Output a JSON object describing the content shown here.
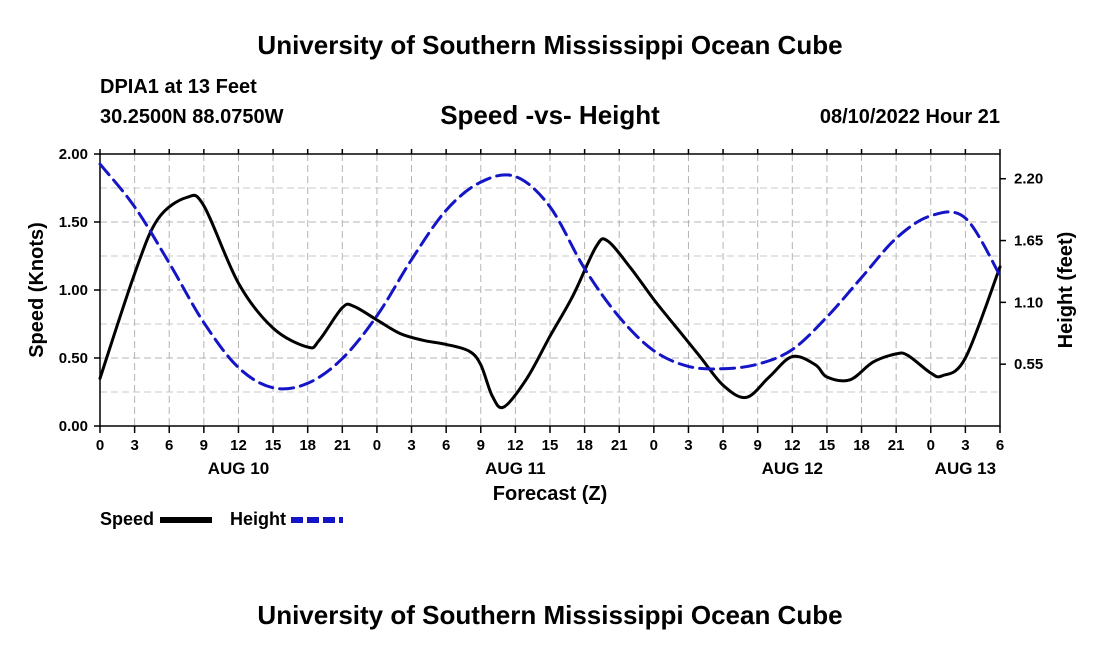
{
  "page": {
    "title": "University of Southern Mississippi Ocean Cube",
    "station": "DPIA1 at 13 Feet",
    "coordinates": "30.2500N  88.0750W",
    "subtitle": "Speed -vs- Height",
    "datetime": "08/10/2022 Hour 21",
    "footer_title": "University of Southern Mississippi Ocean Cube"
  },
  "chart_data": {
    "type": "line",
    "title": "Speed -vs- Height",
    "xlabel": "Forecast (Z)",
    "ylabel": "Speed (Knots)",
    "y2label": "Height (feet)",
    "xlim": [
      0,
      78
    ],
    "ylim": [
      0,
      2.0
    ],
    "y2lim": [
      0.0,
      2.42
    ],
    "grid": true,
    "x_ticks": [
      0,
      3,
      6,
      9,
      12,
      15,
      18,
      21,
      24,
      27,
      30,
      33,
      36,
      39,
      42,
      45,
      48,
      51,
      54,
      57,
      60,
      63,
      66,
      69,
      72,
      75,
      78
    ],
    "x_tick_labels": [
      "0",
      "3",
      "6",
      "9",
      "12",
      "15",
      "18",
      "21",
      "0",
      "3",
      "6",
      "9",
      "12",
      "15",
      "18",
      "21",
      "0",
      "3",
      "6",
      "9",
      "12",
      "15",
      "18",
      "21",
      "0",
      "3",
      "6"
    ],
    "day_labels": [
      {
        "x": 12,
        "label": "AUG 10"
      },
      {
        "x": 36,
        "label": "AUG 11"
      },
      {
        "x": 60,
        "label": "AUG 12"
      },
      {
        "x": 75,
        "label": "AUG 13"
      }
    ],
    "y_ticks": [
      0.0,
      0.5,
      1.0,
      1.5,
      2.0
    ],
    "y_tick_labels": [
      "0.00",
      "0.50",
      "1.00",
      "1.50",
      "2.00"
    ],
    "y2_ticks": [
      0.55,
      1.1,
      1.65,
      2.2
    ],
    "y2_tick_labels": [
      "0.55",
      "1.10",
      "1.65",
      "2.20"
    ],
    "legend": [
      {
        "name": "Speed",
        "color": "#000000",
        "dash": false
      },
      {
        "name": "Height",
        "color": "#1515c8",
        "dash": true
      }
    ],
    "series": [
      {
        "name": "Speed",
        "axis": "left",
        "color": "#000000",
        "x": [
          0,
          3,
          5,
          7.5,
          9,
          12,
          15,
          18,
          19,
          21,
          22,
          24,
          26,
          28,
          30,
          32,
          33,
          34,
          35,
          37,
          39,
          41,
          43,
          44,
          46,
          48,
          50,
          52,
          54,
          56,
          58,
          60,
          62,
          63,
          65,
          67,
          69,
          70,
          72,
          73,
          75,
          78
        ],
        "values": [
          0.35,
          1.12,
          1.52,
          1.68,
          1.62,
          1.05,
          0.72,
          0.58,
          0.63,
          0.87,
          0.88,
          0.78,
          0.68,
          0.63,
          0.6,
          0.55,
          0.45,
          0.22,
          0.14,
          0.35,
          0.66,
          0.96,
          1.32,
          1.36,
          1.16,
          0.93,
          0.72,
          0.51,
          0.3,
          0.21,
          0.36,
          0.51,
          0.45,
          0.36,
          0.34,
          0.47,
          0.53,
          0.52,
          0.39,
          0.37,
          0.5,
          1.17
        ]
      },
      {
        "name": "Height",
        "axis": "right",
        "color": "#1515c8",
        "x": [
          0,
          3,
          6,
          9,
          12,
          15,
          18,
          21,
          24,
          27,
          30,
          33,
          36,
          39,
          42,
          45,
          48,
          51,
          54,
          57,
          60,
          63,
          66,
          69,
          72,
          75,
          78
        ],
        "values": [
          2.33,
          1.95,
          1.45,
          0.92,
          0.52,
          0.34,
          0.38,
          0.6,
          0.98,
          1.48,
          1.92,
          2.17,
          2.22,
          1.95,
          1.4,
          0.97,
          0.67,
          0.53,
          0.51,
          0.55,
          0.68,
          0.97,
          1.32,
          1.67,
          1.87,
          1.85,
          1.34
        ]
      }
    ]
  }
}
